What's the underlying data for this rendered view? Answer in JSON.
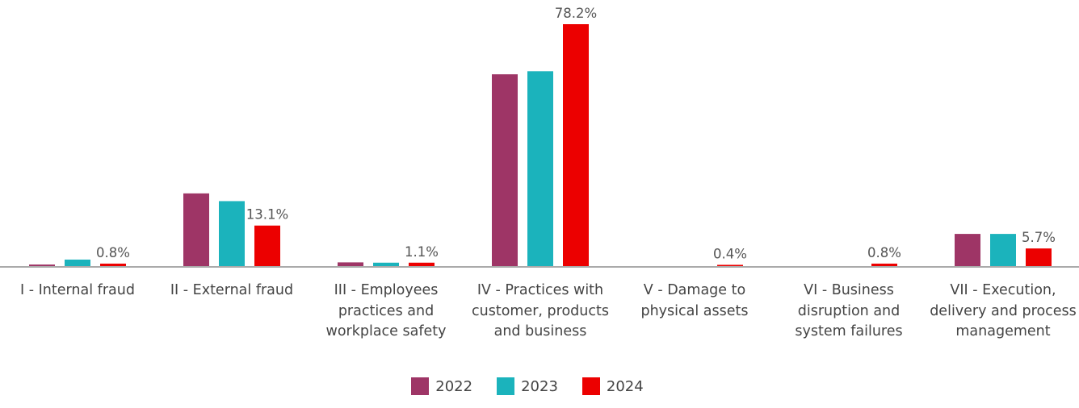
{
  "chart_data": {
    "type": "bar",
    "categories": [
      "I - Internal fraud",
      "II - External fraud",
      "III - Employees practices and workplace safety",
      "IV - Practices with customer, products and business",
      "V - Damage to physical assets",
      "VI - Business disruption and system failures",
      "VII - Execution, delivery and process management"
    ],
    "series": [
      {
        "name": "2022",
        "color": "#9e3566",
        "values": [
          0.5,
          23.5,
          1.2,
          62.0,
          0,
          0,
          10.4
        ]
      },
      {
        "name": "2023",
        "color": "#1bb3bc",
        "values": [
          2.1,
          21.0,
          1.1,
          63.0,
          0,
          0,
          10.4
        ]
      },
      {
        "name": "2024",
        "color": "#ec0000",
        "values": [
          0.8,
          13.1,
          1.1,
          78.2,
          0.4,
          0.8,
          5.7
        ]
      }
    ],
    "data_labels": [
      "0.8%",
      "13.1%",
      "1.1%",
      "78.2%",
      "0.4%",
      "0.8%",
      "5.7%"
    ],
    "ylim": [
      0,
      78.2
    ],
    "legend_position": "bottom",
    "grid": false
  }
}
